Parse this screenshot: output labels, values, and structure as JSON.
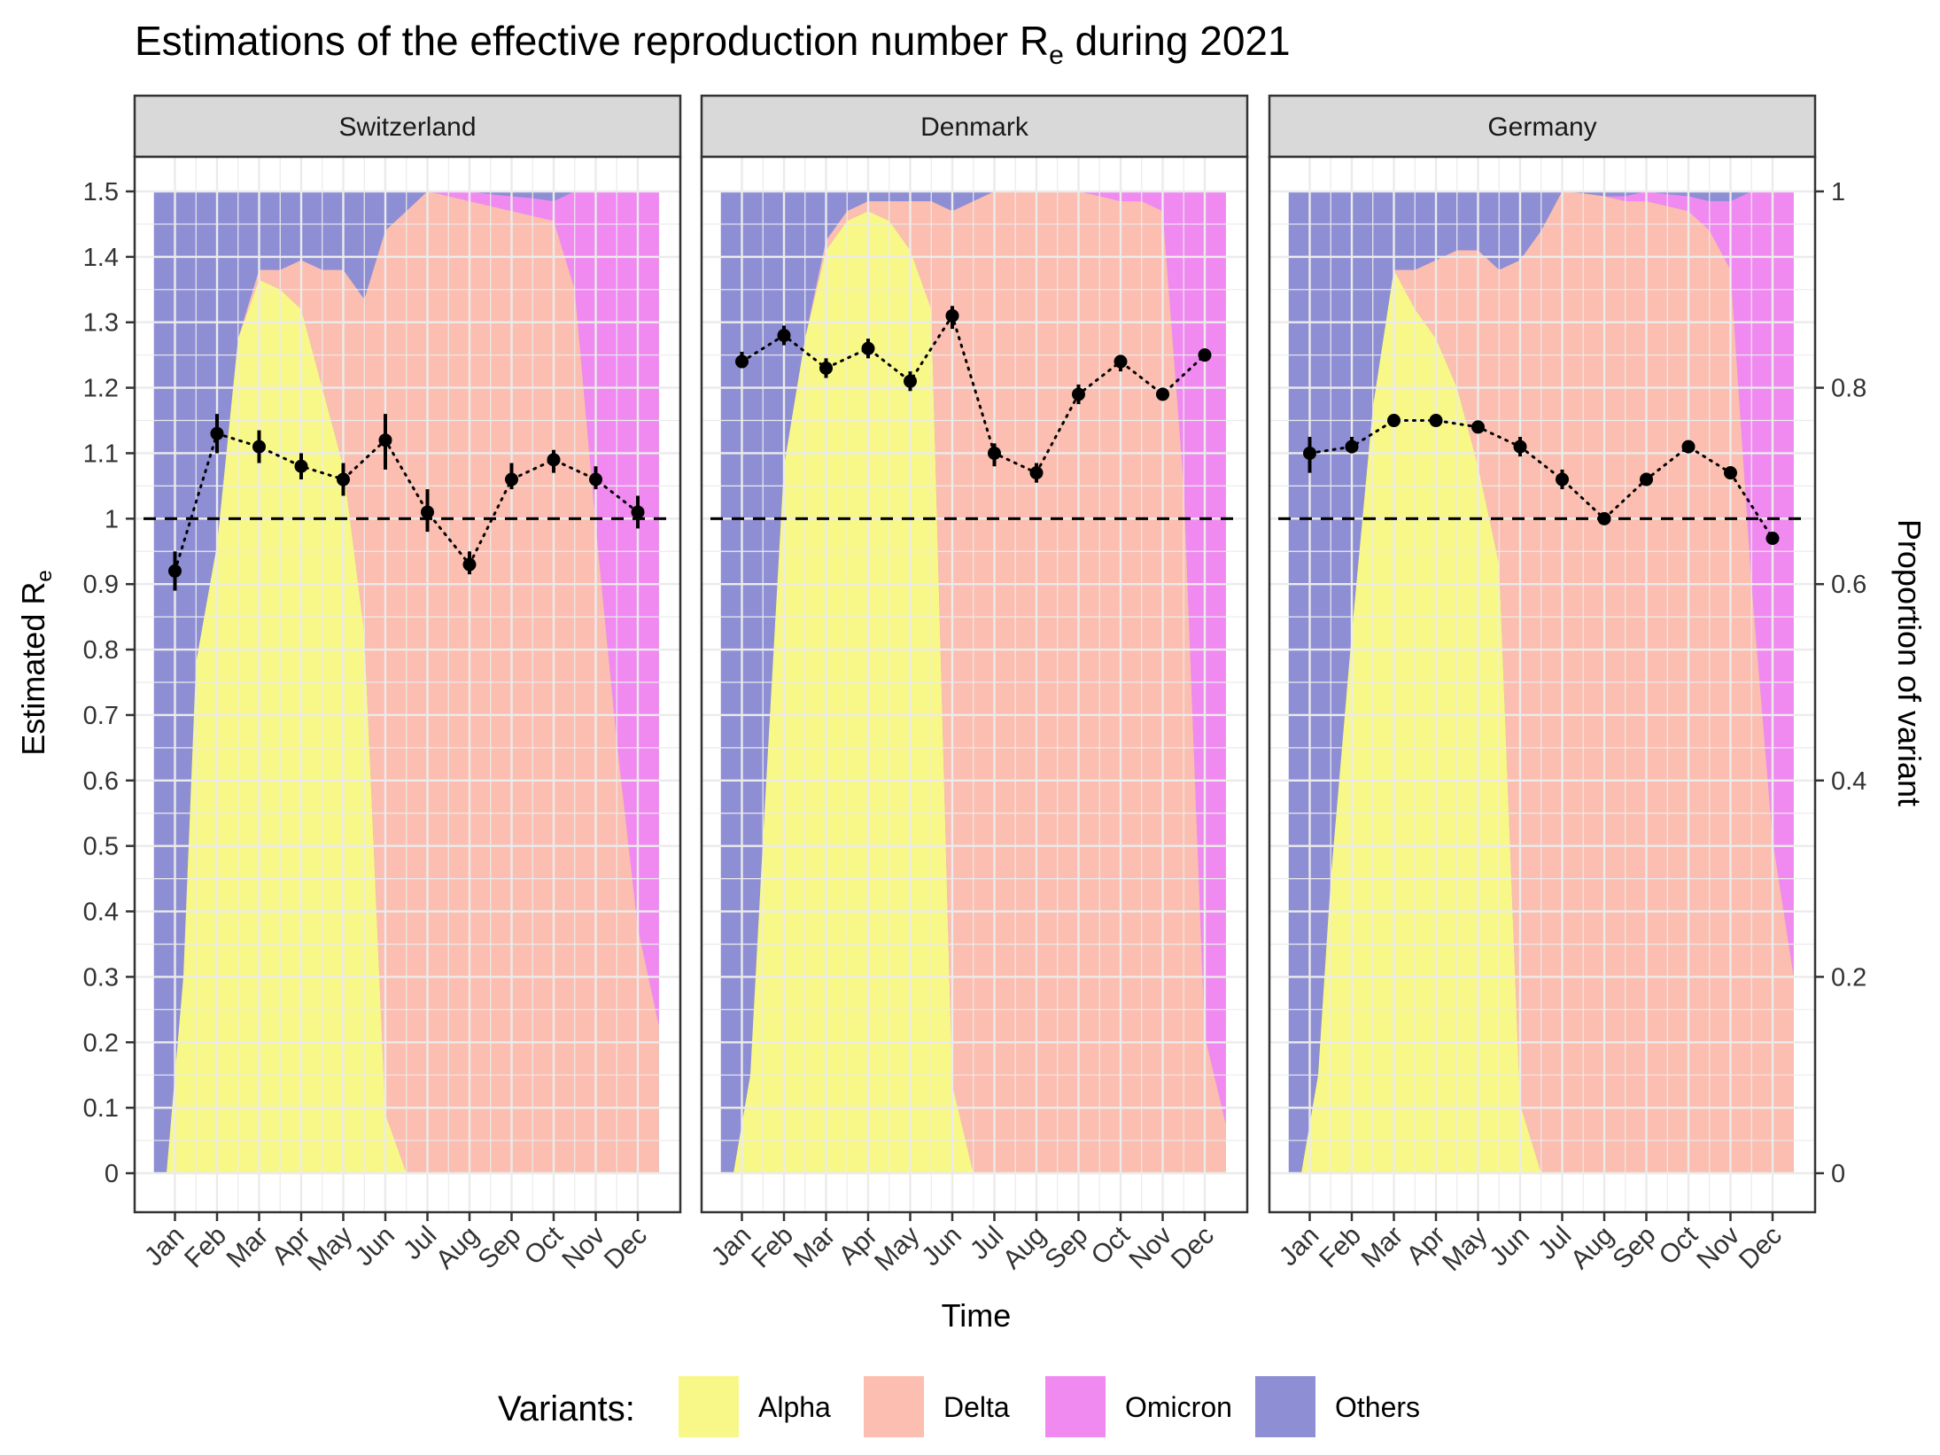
{
  "chart_data": {
    "type": "area",
    "title_main": "Estimations of the effective reproduction number R",
    "title_sub": "e",
    "title_tail": " during 2021",
    "ylabel_main": "Estimated R",
    "ylabel_sub": "e",
    "y2label": "Proportion of variant",
    "xlabel": "Time",
    "legend_title": "Variants:",
    "legend_position": "bottom",
    "grid": true,
    "reference_line": 1,
    "ylim": [
      0,
      1.5
    ],
    "y2lim": [
      0,
      1
    ],
    "y_ticks": [
      "0",
      "0.1",
      "0.2",
      "0.3",
      "0.4",
      "0.5",
      "0.6",
      "0.7",
      "0.8",
      "0.9",
      "1",
      "1.1",
      "1.2",
      "1.3",
      "1.4",
      "1.5"
    ],
    "y2_ticks": [
      "0",
      "0.2",
      "0.4",
      "0.6",
      "0.8",
      "1"
    ],
    "months": [
      "Jan",
      "Feb",
      "Mar",
      "Apr",
      "May",
      "Jun",
      "Jul",
      "Aug",
      "Sep",
      "Oct",
      "Nov",
      "Dec"
    ],
    "variants": [
      {
        "name": "Alpha",
        "color": "#f8f889"
      },
      {
        "name": "Delta",
        "color": "#fbbeb0"
      },
      {
        "name": "Omicron",
        "color": "#f08af0"
      },
      {
        "name": "Others",
        "color": "#8e8ed5"
      }
    ],
    "panels": [
      {
        "name": "Switzerland",
        "re": [
          {
            "month": "Jan",
            "value": 0.92,
            "low": 0.89,
            "high": 0.95
          },
          {
            "month": "Feb",
            "value": 1.13,
            "low": 1.1,
            "high": 1.16
          },
          {
            "month": "Mar",
            "value": 1.11,
            "low": 1.085,
            "high": 1.135
          },
          {
            "month": "Apr",
            "value": 1.08,
            "low": 1.06,
            "high": 1.1
          },
          {
            "month": "May",
            "value": 1.06,
            "low": 1.035,
            "high": 1.085
          },
          {
            "month": "Jun",
            "value": 1.12,
            "low": 1.075,
            "high": 1.16
          },
          {
            "month": "Jul",
            "value": 1.01,
            "low": 0.98,
            "high": 1.045
          },
          {
            "month": "Aug",
            "value": 0.93,
            "low": 0.915,
            "high": 0.95
          },
          {
            "month": "Sep",
            "value": 1.06,
            "low": 1.045,
            "high": 1.085
          },
          {
            "month": "Oct",
            "value": 1.09,
            "low": 1.07,
            "high": 1.105
          },
          {
            "month": "Nov",
            "value": 1.06,
            "low": 1.045,
            "high": 1.08
          },
          {
            "month": "Dec",
            "value": 1.01,
            "low": 0.985,
            "high": 1.035
          }
        ],
        "proportions": {
          "t": [
            -0.5,
            -0.2,
            0.2,
            0.5,
            1.0,
            1.5,
            2.0,
            2.5,
            3.0,
            3.5,
            4.0,
            4.5,
            5.0,
            5.5,
            6.0,
            6.5,
            7.0,
            7.5,
            8.0,
            8.5,
            9.0,
            9.5,
            10.0,
            10.5,
            11.0,
            11.5
          ],
          "alpha": [
            0.0,
            0.0,
            0.2,
            0.52,
            0.64,
            0.85,
            0.91,
            0.9,
            0.88,
            0.8,
            0.72,
            0.55,
            0.06,
            0.0,
            0.0,
            0.0,
            0.0,
            0.0,
            0.0,
            0.0,
            0.0,
            0.0,
            0.0,
            0.0,
            0.0,
            0.0
          ],
          "delta": [
            0.0,
            0.0,
            0.0,
            0.0,
            0.0,
            0.0,
            0.01,
            0.02,
            0.05,
            0.12,
            0.2,
            0.34,
            0.9,
            0.98,
            1.0,
            0.995,
            0.99,
            0.985,
            0.98,
            0.975,
            0.97,
            0.9,
            0.66,
            0.44,
            0.25,
            0.15
          ],
          "omicron": [
            0.0,
            0.0,
            0.0,
            0.0,
            0.0,
            0.0,
            0.0,
            0.0,
            0.0,
            0.0,
            0.0,
            0.0,
            0.0,
            0.0,
            0.0,
            0.005,
            0.01,
            0.012,
            0.015,
            0.018,
            0.02,
            0.1,
            0.34,
            0.56,
            0.75,
            0.85
          ]
        }
      },
      {
        "name": "Denmark",
        "re": [
          {
            "month": "Jan",
            "value": 1.24,
            "low": 1.23,
            "high": 1.255
          },
          {
            "month": "Feb",
            "value": 1.28,
            "low": 1.265,
            "high": 1.295
          },
          {
            "month": "Mar",
            "value": 1.23,
            "low": 1.215,
            "high": 1.245
          },
          {
            "month": "Apr",
            "value": 1.26,
            "low": 1.245,
            "high": 1.275
          },
          {
            "month": "May",
            "value": 1.21,
            "low": 1.195,
            "high": 1.225
          },
          {
            "month": "Jun",
            "value": 1.31,
            "low": 1.29,
            "high": 1.325
          },
          {
            "month": "Jul",
            "value": 1.1,
            "low": 1.08,
            "high": 1.115
          },
          {
            "month": "Aug",
            "value": 1.07,
            "low": 1.055,
            "high": 1.085
          },
          {
            "month": "Sep",
            "value": 1.19,
            "low": 1.175,
            "high": 1.205
          },
          {
            "month": "Oct",
            "value": 1.24,
            "low": 1.225,
            "high": 1.25
          },
          {
            "month": "Nov",
            "value": 1.19,
            "low": 1.185,
            "high": 1.2
          },
          {
            "month": "Dec",
            "value": 1.25,
            "low": 1.24,
            "high": 1.255
          }
        ],
        "proportions": {
          "t": [
            -0.5,
            -0.2,
            0.2,
            0.5,
            1.0,
            1.5,
            2.0,
            2.5,
            3.0,
            3.5,
            4.0,
            4.5,
            5.0,
            5.5,
            6.0,
            6.5,
            7.0,
            7.5,
            8.0,
            8.5,
            9.0,
            9.5,
            10.0,
            10.5,
            11.0,
            11.5
          ],
          "alpha": [
            0.0,
            0.0,
            0.1,
            0.34,
            0.72,
            0.85,
            0.94,
            0.97,
            0.98,
            0.97,
            0.94,
            0.88,
            0.09,
            0.0,
            0.0,
            0.0,
            0.0,
            0.0,
            0.0,
            0.0,
            0.0,
            0.0,
            0.0,
            0.0,
            0.0,
            0.0
          ],
          "delta": [
            0.0,
            0.0,
            0.0,
            0.0,
            0.0,
            0.0,
            0.01,
            0.01,
            0.01,
            0.02,
            0.05,
            0.11,
            0.89,
            0.99,
            1.0,
            1.0,
            1.0,
            1.0,
            1.0,
            0.995,
            0.99,
            0.99,
            0.98,
            0.7,
            0.14,
            0.05
          ],
          "omicron": [
            0.0,
            0.0,
            0.0,
            0.0,
            0.0,
            0.0,
            0.0,
            0.0,
            0.0,
            0.0,
            0.0,
            0.0,
            0.0,
            0.0,
            0.0,
            0.0,
            0.0,
            0.0,
            0.0,
            0.005,
            0.01,
            0.01,
            0.02,
            0.3,
            0.86,
            0.95
          ]
        }
      },
      {
        "name": "Germany",
        "re": [
          {
            "month": "Jan",
            "value": 1.1,
            "low": 1.07,
            "high": 1.125
          },
          {
            "month": "Feb",
            "value": 1.11,
            "low": 1.1,
            "high": 1.125
          },
          {
            "month": "Mar",
            "value": 1.15,
            "low": 1.145,
            "high": 1.155
          },
          {
            "month": "Apr",
            "value": 1.15,
            "low": 1.145,
            "high": 1.155
          },
          {
            "month": "May",
            "value": 1.14,
            "low": 1.135,
            "high": 1.15
          },
          {
            "month": "Jun",
            "value": 1.11,
            "low": 1.095,
            "high": 1.125
          },
          {
            "month": "Jul",
            "value": 1.06,
            "low": 1.045,
            "high": 1.075
          },
          {
            "month": "Aug",
            "value": 1.0,
            "low": 0.995,
            "high": 1.005
          },
          {
            "month": "Sep",
            "value": 1.06,
            "low": 1.055,
            "high": 1.07
          },
          {
            "month": "Oct",
            "value": 1.11,
            "low": 1.1,
            "high": 1.115
          },
          {
            "month": "Nov",
            "value": 1.07,
            "low": 1.06,
            "high": 1.08
          },
          {
            "month": "Dec",
            "value": 0.97,
            "low": 0.965,
            "high": 0.975
          }
        ],
        "proportions": {
          "t": [
            -0.5,
            -0.2,
            0.2,
            0.5,
            1.0,
            1.5,
            2.0,
            2.5,
            3.0,
            3.5,
            4.0,
            4.5,
            5.0,
            5.5,
            6.0,
            6.5,
            7.0,
            7.5,
            8.0,
            8.5,
            9.0,
            9.5,
            10.0,
            10.5,
            11.0,
            11.5
          ],
          "alpha": [
            0.0,
            0.0,
            0.1,
            0.3,
            0.55,
            0.78,
            0.92,
            0.88,
            0.85,
            0.8,
            0.72,
            0.62,
            0.07,
            0.0,
            0.0,
            0.0,
            0.0,
            0.0,
            0.0,
            0.0,
            0.0,
            0.0,
            0.0,
            0.0,
            0.0,
            0.0
          ],
          "delta": [
            0.0,
            0.0,
            0.0,
            0.0,
            0.0,
            0.0,
            0.0,
            0.04,
            0.08,
            0.14,
            0.22,
            0.3,
            0.86,
            0.96,
            1.0,
            0.998,
            0.995,
            0.99,
            0.99,
            0.985,
            0.98,
            0.96,
            0.92,
            0.6,
            0.34,
            0.2
          ],
          "omicron": [
            0.0,
            0.0,
            0.0,
            0.0,
            0.0,
            0.0,
            0.0,
            0.0,
            0.0,
            0.0,
            0.0,
            0.0,
            0.0,
            0.0,
            0.0,
            0.0,
            0.0,
            0.005,
            0.01,
            0.012,
            0.015,
            0.03,
            0.07,
            0.4,
            0.66,
            0.8
          ]
        }
      }
    ]
  }
}
